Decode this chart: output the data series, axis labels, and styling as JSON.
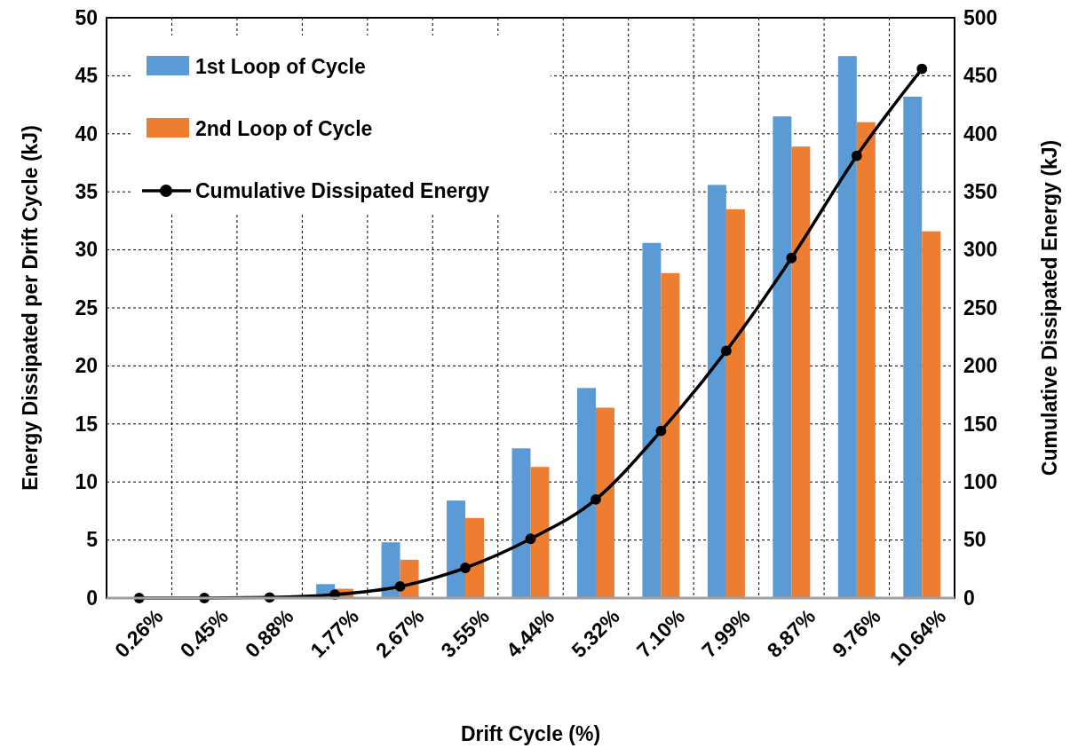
{
  "chart_data": {
    "type": "bar",
    "xlabel": "Drift Cycle (%)",
    "ylabel": "Energy Dissipated per Drift Cycle (kJ)",
    "y2label": "Cumulative Dissipated Energy (kJ)",
    "categories": [
      "0.26%",
      "0.45%",
      "0.88%",
      "1.77%",
      "2.67%",
      "3.55%",
      "4.44%",
      "5.32%",
      "7.10%",
      "7.99%",
      "8.87%",
      "9.76%",
      "10.64%"
    ],
    "series": [
      {
        "name": "1st Loop of Cycle",
        "color": "#5b9bd5",
        "values": [
          0,
          0,
          0.1,
          1.2,
          4.8,
          8.4,
          12.9,
          18.1,
          30.6,
          35.6,
          41.5,
          46.7,
          43.2
        ]
      },
      {
        "name": "2nd Loop of Cycle",
        "color": "#ed7d31",
        "values": [
          0,
          0,
          null,
          0.8,
          3.3,
          6.9,
          11.3,
          16.4,
          28.0,
          33.5,
          38.9,
          41.0,
          31.6
        ]
      },
      {
        "name": "Cumulative Dissipated Energy",
        "type": "line",
        "axis": "y2",
        "color": "#000000",
        "values": [
          0,
          0,
          0.5,
          3,
          10,
          26,
          51,
          85,
          144,
          213,
          293,
          381,
          456
        ]
      }
    ],
    "ylim": [
      0,
      50
    ],
    "yticks": [
      0,
      5,
      10,
      15,
      20,
      25,
      30,
      35,
      40,
      45,
      50
    ],
    "y2lim": [
      0,
      500
    ],
    "y2ticks": [
      0,
      50,
      100,
      150,
      200,
      250,
      300,
      350,
      400,
      450,
      500
    ],
    "grid": true,
    "legend": "top left",
    "marker": "circle",
    "line_style": "solid"
  }
}
